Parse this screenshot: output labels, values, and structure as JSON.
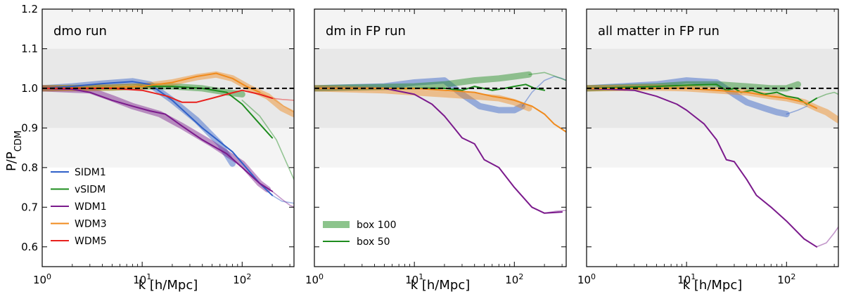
{
  "chart_data": {
    "type": "line",
    "x_scale": "log",
    "xlabel": "k [h/Mpc]",
    "ylabel_main": "P/P",
    "ylabel_sub": "CDM",
    "xlim": [
      1,
      330
    ],
    "ylim": [
      0.55,
      1.2
    ],
    "x_ticks": [
      {
        "value": 1,
        "base": "10",
        "exp": "0"
      },
      {
        "value": 10,
        "base": "10",
        "exp": "1"
      },
      {
        "value": 100,
        "base": "10",
        "exp": "2"
      }
    ],
    "y_ticks": [
      0.6,
      0.7,
      0.8,
      0.9,
      1.0,
      1.1,
      1.2
    ],
    "y_tick_labels": [
      "0.6",
      "0.7",
      "0.8",
      "0.9",
      "1.0",
      "1.1",
      "1.2"
    ],
    "bands": [
      {
        "from": 0.8,
        "to": 1.2,
        "color": "#f4f4f4"
      },
      {
        "from": 0.9,
        "to": 1.1,
        "color": "#e8e8e8"
      }
    ],
    "reference_line": {
      "y": 1.0,
      "style": "dashed",
      "color": "#000000"
    },
    "series_colors": {
      "SIDM1": "#3060c8",
      "vSIDM": "#1e8c1e",
      "WDM1": "#7b1a8c",
      "WDM3": "#f08a1c",
      "WDM5": "#e8201c"
    },
    "legend_models": {
      "position": "bottom-left",
      "entries": [
        {
          "label": "SIDM1",
          "color": "#3060c8"
        },
        {
          "label": "vSIDM",
          "color": "#1e8c1e"
        },
        {
          "label": "WDM1",
          "color": "#7b1a8c"
        },
        {
          "label": "WDM3",
          "color": "#f08a1c"
        },
        {
          "label": "WDM5",
          "color": "#e8201c"
        }
      ]
    },
    "legend_boxes": {
      "position": "bottom-left",
      "entries": [
        {
          "label": "box 100",
          "style": "band",
          "color": "#8cc48c"
        },
        {
          "label": "box 50",
          "style": "line",
          "color": "#1e8c1e"
        }
      ]
    },
    "panels": [
      {
        "title": "dmo run",
        "series": [
          {
            "name": "SIDM1",
            "style": "band",
            "x": [
              1,
              2,
              4,
              8,
              12,
              20,
              35,
              60,
              80
            ],
            "y": [
              1.0,
              1.005,
              1.012,
              1.018,
              1.01,
              0.97,
              0.92,
              0.86,
              0.81
            ]
          },
          {
            "name": "SIDM1",
            "style": "line",
            "x": [
              1,
              2,
              4,
              8,
              12,
              20,
              40,
              80,
              150,
              200
            ],
            "y": [
              1.0,
              1.005,
              1.012,
              1.017,
              1.01,
              0.97,
              0.9,
              0.84,
              0.76,
              0.73
            ]
          },
          {
            "name": "SIDM1",
            "style": "faint",
            "x": [
              200,
              250,
              330
            ],
            "y": [
              0.73,
              0.715,
              0.71
            ]
          },
          {
            "name": "vSIDM",
            "style": "band",
            "x": [
              1,
              5,
              10,
              20,
              40,
              70,
              100
            ],
            "y": [
              1.0,
              1.002,
              1.005,
              1.005,
              1.0,
              0.99,
              0.985
            ]
          },
          {
            "name": "vSIDM",
            "style": "line",
            "x": [
              1,
              5,
              10,
              20,
              40,
              70,
              100,
              150,
              200
            ],
            "y": [
              1.0,
              1.002,
              1.005,
              1.005,
              1.0,
              0.99,
              0.96,
              0.91,
              0.875
            ]
          },
          {
            "name": "vSIDM",
            "style": "faint",
            "x": [
              100,
              150,
              220,
              280,
              330
            ],
            "y": [
              0.97,
              0.93,
              0.87,
              0.81,
              0.77
            ]
          },
          {
            "name": "WDM1",
            "style": "band",
            "x": [
              1,
              3,
              5,
              8,
              15,
              25,
              50,
              100,
              150,
              180
            ],
            "y": [
              1.0,
              0.995,
              0.975,
              0.955,
              0.935,
              0.905,
              0.86,
              0.81,
              0.76,
              0.745
            ]
          },
          {
            "name": "WDM1",
            "style": "line",
            "x": [
              1,
              2,
              3,
              5,
              8,
              12,
              17,
              25,
              40,
              70,
              100,
              150,
              200
            ],
            "y": [
              1.0,
              0.998,
              0.99,
              0.97,
              0.955,
              0.943,
              0.935,
              0.905,
              0.87,
              0.835,
              0.8,
              0.76,
              0.74
            ]
          },
          {
            "name": "WDM1",
            "style": "faint",
            "x": [
              200,
              250,
              300,
              330
            ],
            "y": [
              0.74,
              0.72,
              0.705,
              0.7
            ]
          },
          {
            "name": "WDM3",
            "style": "band",
            "x": [
              1,
              5,
              10,
              20,
              35,
              55,
              80,
              120,
              180,
              250,
              330
            ],
            "y": [
              1.0,
              1.002,
              1.005,
              1.015,
              1.028,
              1.035,
              1.025,
              1.0,
              0.98,
              0.95,
              0.935
            ]
          },
          {
            "name": "WDM3",
            "style": "line",
            "x": [
              1,
              5,
              10,
              20,
              35,
              55,
              80,
              110,
              150
            ],
            "y": [
              1.0,
              1.002,
              1.005,
              1.015,
              1.03,
              1.038,
              1.025,
              1.005,
              0.99
            ]
          },
          {
            "name": "WDM3",
            "style": "faint",
            "x": [
              150,
              200,
              260,
              330
            ],
            "y": [
              0.99,
              0.975,
              0.955,
              0.94
            ]
          },
          {
            "name": "WDM5",
            "style": "line",
            "x": [
              1,
              5,
              10,
              18,
              25,
              35,
              50,
              70,
              100,
              150,
              200
            ],
            "y": [
              1.0,
              1.0,
              0.995,
              0.98,
              0.965,
              0.965,
              0.975,
              0.985,
              0.995,
              0.985,
              0.975
            ]
          },
          {
            "name": "WDM5",
            "style": "faint",
            "x": [
              200,
              250,
              330
            ],
            "y": [
              0.975,
              0.972,
              0.97
            ]
          }
        ]
      },
      {
        "title": "dm in FP run",
        "series": [
          {
            "name": "SIDM1",
            "style": "band",
            "x": [
              1,
              5,
              10,
              20,
              30,
              45,
              70,
              100,
              120
            ],
            "y": [
              1.0,
              1.005,
              1.015,
              1.02,
              0.985,
              0.955,
              0.945,
              0.945,
              0.955
            ]
          },
          {
            "name": "SIDM1",
            "style": "faint",
            "x": [
              120,
              150,
              200,
              250,
              300,
              330
            ],
            "y": [
              0.955,
              0.99,
              1.02,
              1.03,
              1.025,
              1.02
            ]
          },
          {
            "name": "vSIDM",
            "style": "band",
            "x": [
              1,
              10,
              20,
              40,
              70,
              100,
              140
            ],
            "y": [
              1.0,
              1.005,
              1.01,
              1.02,
              1.025,
              1.03,
              1.035
            ]
          },
          {
            "name": "vSIDM",
            "style": "faint",
            "x": [
              140,
              200,
              260,
              330
            ],
            "y": [
              1.035,
              1.04,
              1.03,
              1.02
            ]
          },
          {
            "name": "vSIDM",
            "style": "line",
            "x": [
              1,
              10,
              20,
              30,
              40,
              60,
              80,
              100,
              130,
              160,
              200
            ],
            "y": [
              1.0,
              1.0,
              1.0,
              0.995,
              1.005,
              0.995,
              1.0,
              1.005,
              1.01,
              1.0,
              0.995
            ]
          },
          {
            "name": "WDM1",
            "style": "line",
            "x": [
              1,
              5,
              8,
              10,
              15,
              20,
              25,
              30,
              40,
              50,
              70,
              100,
              150,
              200,
              300
            ],
            "y": [
              1.0,
              1.0,
              0.99,
              0.985,
              0.96,
              0.93,
              0.9,
              0.875,
              0.86,
              0.82,
              0.8,
              0.75,
              0.7,
              0.685,
              0.688
            ]
          },
          {
            "name": "WDM1",
            "style": "faint",
            "x": [
              200,
              260,
              330
            ],
            "y": [
              0.685,
              0.69,
              0.692
            ]
          },
          {
            "name": "WDM3",
            "style": "band",
            "x": [
              1,
              5,
              10,
              20,
              40,
              70,
              100,
              140
            ],
            "y": [
              1.0,
              0.995,
              0.99,
              0.985,
              0.98,
              0.975,
              0.965,
              0.95
            ]
          },
          {
            "name": "WDM3",
            "style": "line",
            "x": [
              1,
              10,
              20,
              40,
              60,
              80,
              100,
              150,
              200,
              250,
              330
            ],
            "y": [
              1.0,
              1.0,
              0.995,
              0.99,
              0.98,
              0.975,
              0.97,
              0.955,
              0.935,
              0.91,
              0.89
            ]
          }
        ]
      },
      {
        "title": "all matter in FP run",
        "series": [
          {
            "name": "SIDM1",
            "style": "band",
            "x": [
              1,
              5,
              10,
              20,
              30,
              40,
              60,
              80,
              100
            ],
            "y": [
              1.0,
              1.01,
              1.02,
              1.015,
              0.985,
              0.965,
              0.95,
              0.94,
              0.935
            ]
          },
          {
            "name": "SIDM1",
            "style": "faint",
            "x": [
              100,
              130,
              160
            ],
            "y": [
              0.935,
              0.945,
              0.955
            ]
          },
          {
            "name": "vSIDM",
            "style": "band",
            "x": [
              1,
              5,
              10,
              20,
              40,
              70,
              100,
              130
            ],
            "y": [
              1.0,
              1.005,
              1.01,
              1.01,
              1.005,
              1.0,
              1.0,
              1.01
            ]
          },
          {
            "name": "vSIDM",
            "style": "line",
            "x": [
              1,
              5,
              10,
              20,
              25,
              30,
              35,
              45,
              60,
              80,
              100,
              130,
              160,
              200
            ],
            "y": [
              1.0,
              1.005,
              1.008,
              1.01,
              0.995,
              1.0,
              0.99,
              0.995,
              0.985,
              0.99,
              0.98,
              0.975,
              0.96,
              0.975
            ]
          },
          {
            "name": "vSIDM",
            "style": "faint",
            "x": [
              200,
              250,
              300,
              330
            ],
            "y": [
              0.975,
              0.985,
              0.99,
              0.985
            ]
          },
          {
            "name": "WDM1",
            "style": "line",
            "x": [
              1,
              3,
              5,
              8,
              10,
              15,
              20,
              25,
              30,
              40,
              50,
              70,
              100,
              150,
              200
            ],
            "y": [
              1.0,
              0.995,
              0.98,
              0.96,
              0.945,
              0.91,
              0.87,
              0.82,
              0.815,
              0.77,
              0.73,
              0.7,
              0.665,
              0.62,
              0.6
            ]
          },
          {
            "name": "WDM1",
            "style": "faint",
            "x": [
              200,
              250,
              300,
              330
            ],
            "y": [
              0.6,
              0.61,
              0.635,
              0.65
            ]
          },
          {
            "name": "WDM3",
            "style": "band",
            "x": [
              1,
              5,
              10,
              20,
              40,
              70,
              100,
              150,
              200,
              250,
              330
            ],
            "y": [
              1.0,
              1.002,
              1.0,
              0.995,
              0.99,
              0.98,
              0.975,
              0.965,
              0.95,
              0.94,
              0.92
            ]
          },
          {
            "name": "WDM3",
            "style": "line",
            "x": [
              1,
              5,
              10,
              20,
              40,
              70,
              100,
              150,
              200
            ],
            "y": [
              1.0,
              1.0,
              1.0,
              0.995,
              0.99,
              0.98,
              0.975,
              0.965,
              0.95
            ]
          }
        ]
      }
    ]
  }
}
